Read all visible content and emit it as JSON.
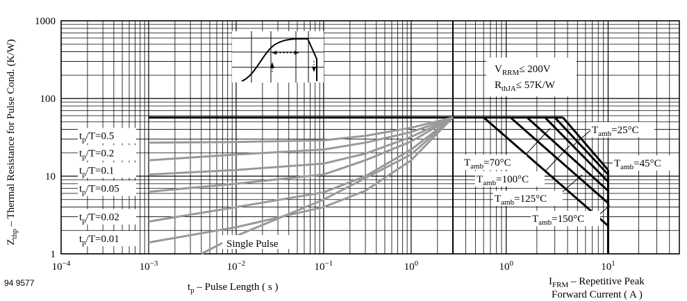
{
  "figure_id": "94 9577",
  "chart_data": {
    "type": "line",
    "ylabel_main": "Z",
    "ylabel_sub": "thp",
    "ylabel_rest": " – Thermal Resistance for Pulse Cond. (K/W)",
    "y_scale": "log",
    "ylim": [
      1,
      1000
    ],
    "y_ticks": [
      {
        "v": 1,
        "t": "1"
      },
      {
        "v": 10,
        "t": "10"
      },
      {
        "v": 100,
        "t": "100"
      },
      {
        "v": 1000,
        "t": "1000"
      }
    ],
    "grid": true,
    "left_panel": {
      "x_scale": "log",
      "xlim": [
        0.0001,
        3.0
      ],
      "x_ticks": [
        {
          "v": 0.0001,
          "b": "10",
          "e": "−4"
        },
        {
          "v": 0.001,
          "b": "10",
          "e": "−3"
        },
        {
          "v": 0.01,
          "b": "10",
          "e": "−2"
        },
        {
          "v": 0.1,
          "b": "10",
          "e": "−1"
        },
        {
          "v": 1,
          "b": "10",
          "e": "0"
        }
      ],
      "xlabel_main": "t",
      "xlabel_sub": "p",
      "xlabel_rest": " – Pulse Length ( s )",
      "steady_value": 57,
      "series": [
        {
          "name": "t/T=0.5",
          "points": [
            [
              0.001,
              27
            ],
            [
              0.01,
              27.5
            ],
            [
              0.1,
              29
            ],
            [
              0.3,
              33
            ],
            [
              1,
              42
            ],
            [
              3,
              57
            ]
          ],
          "lbl": {
            "v": "0.5",
            "y": 30
          }
        },
        {
          "name": "t/T=0.2",
          "points": [
            [
              0.001,
              16
            ],
            [
              0.01,
              19
            ],
            [
              0.1,
              22
            ],
            [
              0.3,
              27
            ],
            [
              1,
              37
            ],
            [
              3,
              57
            ]
          ],
          "lbl": {
            "v": "0.2",
            "y": 18
          }
        },
        {
          "name": "t/T=0.1",
          "points": [
            [
              0.001,
              10.5
            ],
            [
              0.01,
              12
            ],
            [
              0.1,
              14.5
            ],
            [
              0.3,
              19.5
            ],
            [
              1,
              32
            ],
            [
              3,
              57
            ]
          ],
          "lbl": {
            "v": "0.1",
            "y": 10.8
          }
        },
        {
          "name": "t/T=0.05",
          "points": [
            [
              0.001,
              6.3
            ],
            [
              0.01,
              8
            ],
            [
              0.1,
              10.5
            ],
            [
              0.3,
              16
            ],
            [
              1,
              28
            ],
            [
              3,
              57
            ]
          ],
          "lbl": {
            "v": "0.05",
            "y": 6.3
          }
        },
        {
          "name": "t/T=0.02",
          "points": [
            [
              0.001,
              2.6
            ],
            [
              0.01,
              4
            ],
            [
              0.1,
              6.2
            ],
            [
              0.3,
              10
            ],
            [
              1,
              22
            ],
            [
              3,
              57
            ]
          ],
          "lbl": {
            "v": "0.02",
            "y": 2.7
          }
        },
        {
          "name": "t/T=0.01",
          "points": [
            [
              0.001,
              1.4
            ],
            [
              0.01,
              2.2
            ],
            [
              0.1,
              4
            ],
            [
              0.3,
              6.5
            ],
            [
              1,
              16
            ],
            [
              3,
              57
            ]
          ],
          "lbl": {
            "v": "0.01",
            "y": 1.42
          }
        },
        {
          "name": "Single Pulse",
          "points": [
            [
              0.004,
              1
            ],
            [
              0.01,
              1.7
            ],
            [
              0.1,
              5
            ],
            [
              1,
              19
            ],
            [
              3,
              57
            ]
          ]
        }
      ],
      "single_pulse_label": "Single Pulse"
    },
    "right_panel": {
      "x_scale": "log",
      "xlim": [
        0.3,
        50
      ],
      "x_ticks": [
        {
          "v": 1,
          "t": "10",
          "e": "0"
        },
        {
          "v": 10,
          "t": "10",
          "e": "1"
        }
      ],
      "xlabel_line1_main": "I",
      "xlabel_line1_sub": "FRM",
      "xlabel_line1_rest": " – Repetitive Peak",
      "xlabel_line2": "Forward Current ( A )",
      "steady_value": 57,
      "series": [
        {
          "name": "Tamb=150°C",
          "points": [
            [
              0.6,
              57
            ],
            [
              10,
              2.3
            ]
          ]
        },
        {
          "name": "Tamb=125°C",
          "points": [
            [
              1.1,
              57
            ],
            [
              10,
              4.5
            ]
          ]
        },
        {
          "name": "Tamb=100°C",
          "points": [
            [
              1.6,
              57
            ],
            [
              10,
              6.5
            ]
          ]
        },
        {
          "name": "Tamb=70°C",
          "points": [
            [
              2.4,
              57
            ],
            [
              10,
              8.5
            ]
          ]
        },
        {
          "name": "Tamb=45°C",
          "points": [
            [
              3.0,
              57
            ],
            [
              10,
              10.5
            ]
          ]
        },
        {
          "name": "Tamb=25°C",
          "points": [
            [
              3.6,
              57
            ],
            [
              10,
              12
            ]
          ]
        }
      ],
      "max_current": 10,
      "current_line_bottom": 1
    },
    "annotations": {
      "vrrm_main": "V",
      "vrrm_sub": "RRM",
      "vrrm_rest": "≤ 200V",
      "rth_main": "R",
      "rth_sub": "thJA",
      "rth_rest": "≤ 57K/W",
      "tp_label_main": "t",
      "tp_label_sub": "p",
      "tp_label_rest": "/T=",
      "tamb_main": "T",
      "tamb_sub": "amb",
      "tamb_labels": {
        "t25": "=25°C",
        "t45": "=45°C",
        "t70": "=70°C",
        "t100": "=100°C",
        "t125": "=125°C",
        "t150": "=150°C"
      }
    },
    "colors": {
      "grid": "#000000",
      "curve": "#999999",
      "bold": "#000000"
    }
  }
}
